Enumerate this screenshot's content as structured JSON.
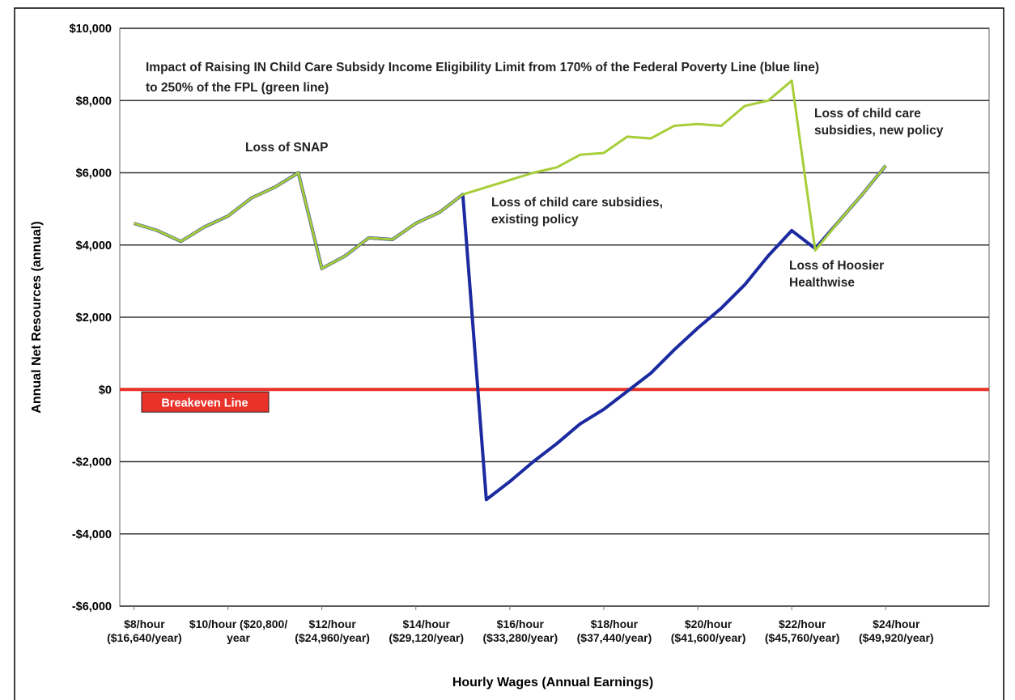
{
  "chart_data": {
    "type": "line",
    "title": [
      "Impact of Raising IN Child Care Subsidy Income Eligibility Limit from 170% of the Federal Poverty Line  (blue line)",
      "to 250%  of the FPL  (green line)"
    ],
    "x_label": "Hourly Wages (Annual Earnings)",
    "y_label": "Annual Net Resources (annual)",
    "x": [
      8,
      8.5,
      9,
      9.5,
      10,
      10.5,
      11,
      11.5,
      12,
      12.5,
      13,
      13.5,
      14,
      14.5,
      15,
      15.5,
      16,
      16.5,
      17,
      17.5,
      18,
      18.5,
      19,
      19.5,
      20,
      20.5,
      21,
      21.5,
      22,
      22.5,
      23,
      23.5,
      24
    ],
    "series": [
      {
        "color": "#1c2aa0",
        "values": [
          4600,
          4400,
          4100,
          4500,
          4800,
          5300,
          5600,
          6000,
          3350,
          3700,
          4200,
          4150,
          4600,
          4900,
          5400,
          -3050,
          -2550,
          -2000,
          -1500,
          -950,
          -550,
          -50,
          450,
          1100,
          1700,
          2250,
          2900,
          3700,
          4400,
          3900,
          4650,
          5400,
          6200
        ]
      },
      {
        "color": "#a6ce39",
        "values": [
          4600,
          4400,
          4100,
          4500,
          4800,
          5300,
          5600,
          6000,
          3350,
          3700,
          4200,
          4150,
          4600,
          4900,
          5400,
          5600,
          5800,
          6000,
          6150,
          6500,
          6550,
          7000,
          6950,
          7300,
          7350,
          7300,
          7850,
          8000,
          8550,
          3850,
          4650,
          5400,
          6200
        ]
      }
    ],
    "xlim": [
      7.7,
      26.2
    ],
    "xticks": [
      {
        "value": 8,
        "label": "$8/hour\n($16,640/year)"
      },
      {
        "value": 10,
        "label": "$10/hour ($20,800/\nyear"
      },
      {
        "value": 12,
        "label": "$12/hour\n($24,960/year)"
      },
      {
        "value": 14,
        "label": "$14/hour\n($29,120/year)"
      },
      {
        "value": 16,
        "label": "$16/hour\n($33,280/year)"
      },
      {
        "value": 18,
        "label": "$18/hour\n($37,440/year)"
      },
      {
        "value": 20,
        "label": "$20/hour\n($41,600/year)"
      },
      {
        "value": 22,
        "label": "$22/hour\n($45,760/year)"
      },
      {
        "value": 24,
        "label": "$24/hour\n($49,920/year)"
      }
    ],
    "ylim": [
      -6000,
      10000
    ],
    "yticks": [
      {
        "value": -6000,
        "label": "-$6,000"
      },
      {
        "value": -4000,
        "label": "-$4,000"
      },
      {
        "value": -2000,
        "label": "-$2,000"
      },
      {
        "value": 0,
        "label": "$0"
      },
      {
        "value": 2000,
        "label": "$2,000"
      },
      {
        "value": 4000,
        "label": "$4,000"
      },
      {
        "value": 6000,
        "label": "$6,000"
      },
      {
        "value": 8000,
        "label": "$8,000"
      },
      {
        "value": 10000,
        "label": "$10,000"
      }
    ],
    "grid": true,
    "reference_line": {
      "value": 0,
      "label": "Breakeven Line",
      "color": "#e8322a"
    },
    "annotations": [
      "Loss of SNAP",
      "Loss of child care subsidies,\nexisting policy",
      "Loss of child care\nsubsidies, new policy",
      "Loss of Hoosier\nHealthwise"
    ]
  }
}
